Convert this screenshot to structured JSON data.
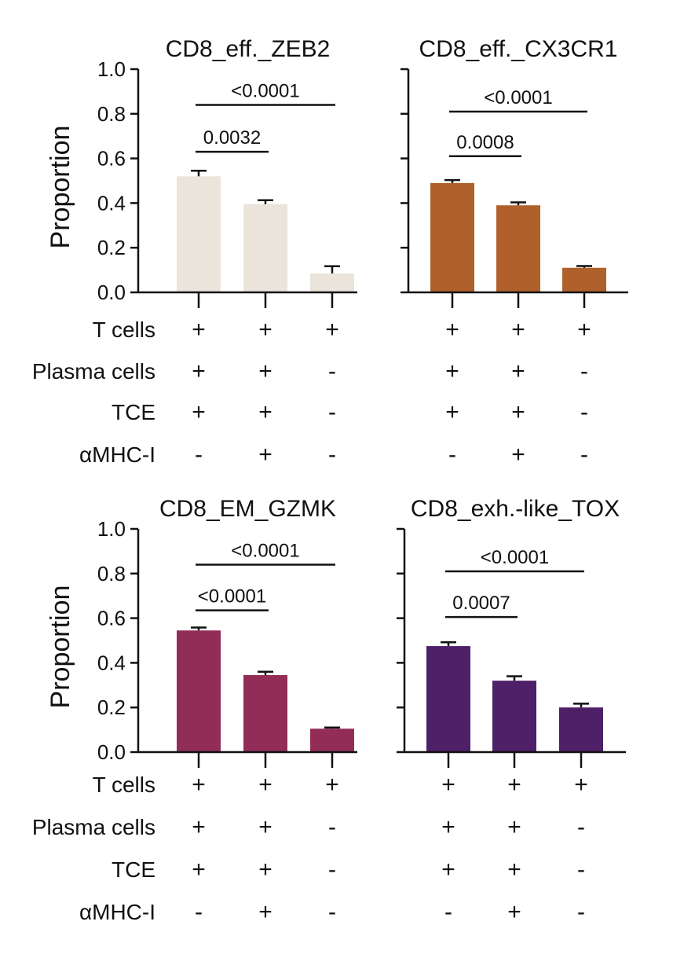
{
  "colors": {
    "ink": "#111111",
    "bar_zeb2": "#ebe4da",
    "bar_cx3cr1": "#b0612b",
    "bar_gzmk": "#922d58",
    "bar_tox": "#4d2068"
  },
  "conditions": {
    "labels": [
      "T cells",
      "Plasma cells",
      "TCE",
      "αMHC-I"
    ],
    "symbols": [
      [
        "+",
        "+",
        "+"
      ],
      [
        "+",
        "+",
        "-"
      ],
      [
        "+",
        "+",
        "-"
      ],
      [
        "-",
        "+",
        "-"
      ]
    ]
  },
  "chart_data": [
    {
      "type": "bar",
      "title": "CD8_eff._ZEB2",
      "ylabel": "Proportion",
      "ylim": [
        0,
        1.0
      ],
      "yticks": [
        0.0,
        0.2,
        0.4,
        0.6,
        0.8,
        1.0
      ],
      "tick_labels": [
        "0.0",
        "0.2",
        "0.4",
        "0.6",
        "0.8",
        "1.0"
      ],
      "values": [
        0.52,
        0.395,
        0.085
      ],
      "errors": [
        0.025,
        0.018,
        0.032
      ],
      "bar_color_key": "bar_zeb2",
      "comparisons": [
        {
          "from": 0,
          "to": 1,
          "y": 0.63,
          "label": "0.0032"
        },
        {
          "from": 0,
          "to": 2,
          "y": 0.84,
          "label": "<0.0001"
        }
      ]
    },
    {
      "type": "bar",
      "title": "CD8_eff._CX3CR1",
      "ylabel": "",
      "ylim": [
        0,
        1.0
      ],
      "yticks": [
        0.0,
        0.2,
        0.4,
        0.6,
        0.8,
        1.0
      ],
      "tick_labels": [],
      "values": [
        0.49,
        0.39,
        0.11
      ],
      "errors": [
        0.013,
        0.013,
        0.008
      ],
      "bar_color_key": "bar_cx3cr1",
      "comparisons": [
        {
          "from": 0,
          "to": 1,
          "y": 0.61,
          "label": "0.0008"
        },
        {
          "from": 0,
          "to": 2,
          "y": 0.81,
          "label": "<0.0001"
        }
      ]
    },
    {
      "type": "bar",
      "title": "CD8_EM_GZMK",
      "ylabel": "Proportion",
      "ylim": [
        0,
        1.0
      ],
      "yticks": [
        0.0,
        0.2,
        0.4,
        0.6,
        0.8,
        1.0
      ],
      "tick_labels": [
        "0.0",
        "0.2",
        "0.4",
        "0.6",
        "0.8",
        "1.0"
      ],
      "values": [
        0.545,
        0.345,
        0.105
      ],
      "errors": [
        0.013,
        0.015,
        0.005
      ],
      "bar_color_key": "bar_gzmk",
      "comparisons": [
        {
          "from": 0,
          "to": 1,
          "y": 0.635,
          "label": "<0.0001"
        },
        {
          "from": 0,
          "to": 2,
          "y": 0.84,
          "label": "<0.0001"
        }
      ]
    },
    {
      "type": "bar",
      "title": "CD8_exh.-like_TOX",
      "ylabel": "",
      "ylim": [
        0,
        1.0
      ],
      "yticks": [
        0.0,
        0.2,
        0.4,
        0.6,
        0.8,
        1.0
      ],
      "tick_labels": [],
      "values": [
        0.475,
        0.32,
        0.2
      ],
      "errors": [
        0.017,
        0.02,
        0.017
      ],
      "bar_color_key": "bar_tox",
      "comparisons": [
        {
          "from": 0,
          "to": 1,
          "y": 0.605,
          "label": "0.0007"
        },
        {
          "from": 0,
          "to": 2,
          "y": 0.81,
          "label": "<0.0001"
        }
      ]
    }
  ]
}
